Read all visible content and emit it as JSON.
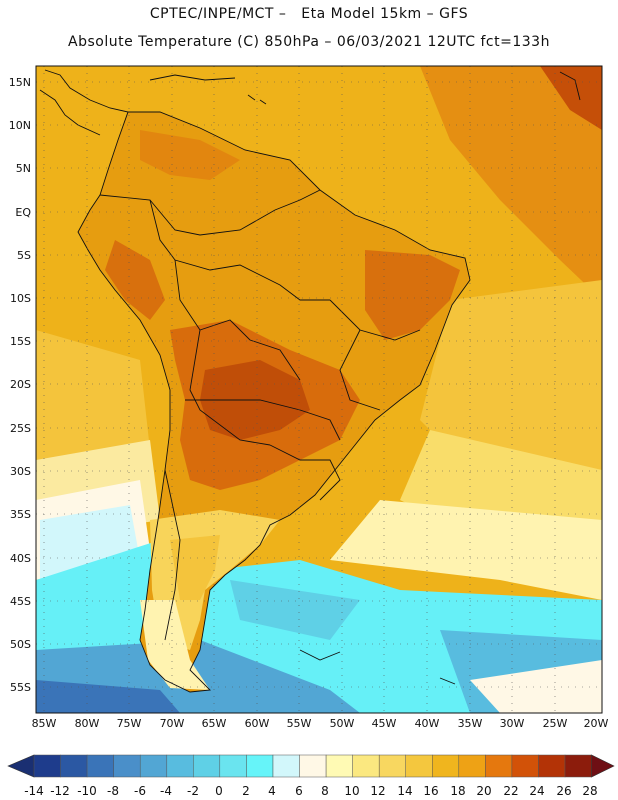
{
  "header": {
    "line1": "CPTEC/INPE/MCT –   Eta Model 15km – GFS",
    "line2": "Absolute Temperature (C) 850hPa – 06/03/2021 12UTC fct=133h"
  },
  "map": {
    "lat_labels": [
      "15N",
      "10N",
      "5N",
      "EQ",
      "5S",
      "10S",
      "15S",
      "20S",
      "25S",
      "30S",
      "35S",
      "40S",
      "45S",
      "50S",
      "55S"
    ],
    "lon_labels": [
      "85W",
      "80W",
      "75W",
      "70W",
      "65W",
      "60W",
      "55W",
      "50W",
      "45W",
      "40W",
      "35W",
      "30W",
      "25W",
      "20W"
    ],
    "ocean_color": "#eeb21a",
    "land_color": "#e8a012"
  },
  "colorbar": {
    "tick_labels": [
      "-14",
      "-12",
      "-10",
      "-8",
      "-6",
      "-4",
      "-2",
      "0",
      "2",
      "4",
      "6",
      "8",
      "10",
      "12",
      "14",
      "16",
      "18",
      "20",
      "22",
      "24",
      "26",
      "28"
    ],
    "colors": [
      "#1e3c8c",
      "#2b58a3",
      "#3a74b8",
      "#4a8fc9",
      "#52a6d4",
      "#58bcdf",
      "#5fd0e6",
      "#6ae4ef",
      "#66f4f9",
      "#d2f7fb",
      "#fff8e6",
      "#fffab4",
      "#fbe880",
      "#f8d760",
      "#f4c73e",
      "#f0b51e",
      "#eea215",
      "#e5780e",
      "#d25208",
      "#b33306",
      "#8c1c0c"
    ]
  }
}
